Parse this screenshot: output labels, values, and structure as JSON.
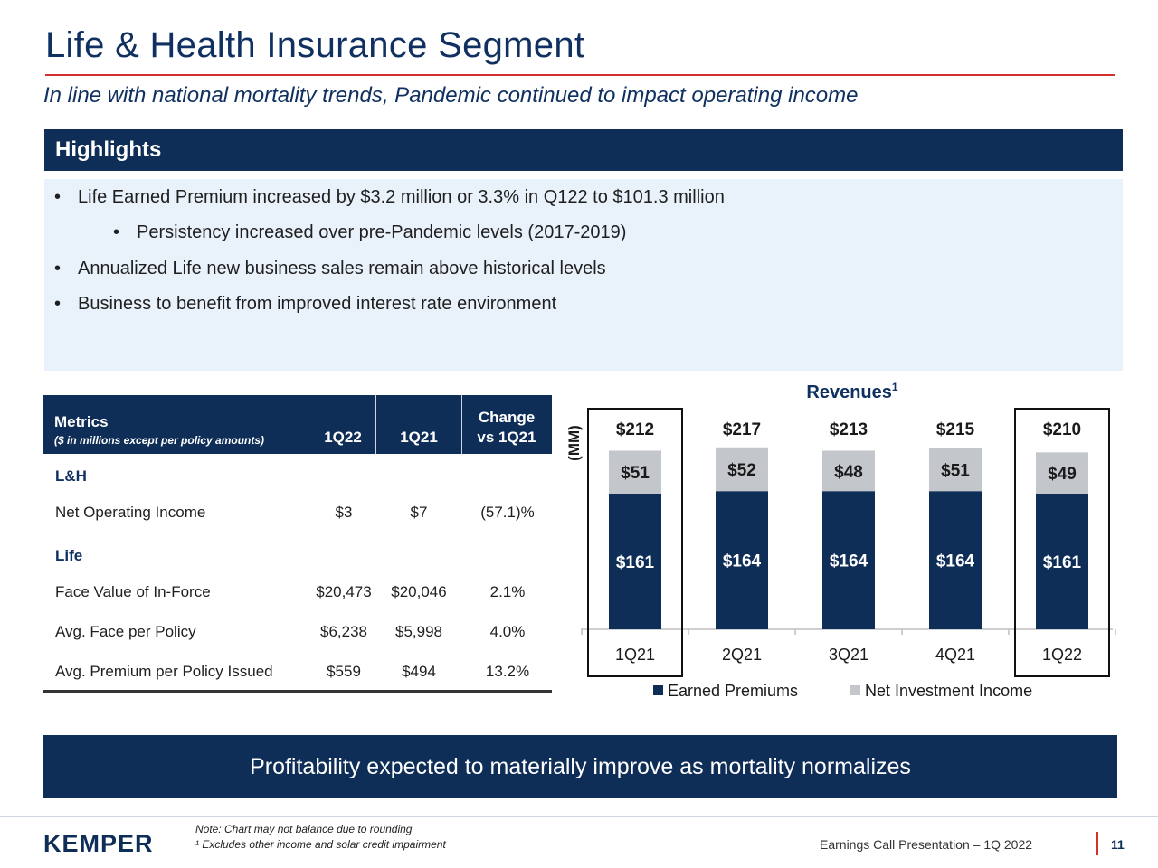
{
  "slide": {
    "title": "Life & Health Insurance Segment",
    "subtitle": "In line with national mortality trends, Pandemic continued to impact operating income"
  },
  "highlights": {
    "header": "Highlights",
    "bullets": [
      "Life Earned Premium increased by $3.2 million or 3.3% in Q122 to $101.3 million",
      "Persistency increased over pre-Pandemic levels (2017-2019)",
      "Annualized Life new business sales remain above historical levels",
      "Business to benefit from improved interest rate environment"
    ]
  },
  "metrics_table": {
    "header": {
      "metrics": "Metrics",
      "sub": "($ in millions except per policy amounts)",
      "col1": "1Q22",
      "col2": "1Q21",
      "col3_line1": "Change",
      "col3_line2": "vs 1Q21"
    },
    "section_lh": "L&H",
    "net_operating_income": {
      "label": "Net Operating Income",
      "v1": "$3",
      "v2": "$7",
      "v3": "(57.1)%"
    },
    "section_life": "Life",
    "face_value": {
      "label": "Face Value of In-Force",
      "v1": "$20,473",
      "v2": "$20,046",
      "v3": "2.1%"
    },
    "avg_face": {
      "label": "Avg. Face per Policy",
      "v1": "$6,238",
      "v2": "$5,998",
      "v3": "4.0%"
    },
    "avg_premium": {
      "label": "Avg. Premium per Policy Issued",
      "v1": "$559",
      "v2": "$494",
      "v3": "13.2%"
    }
  },
  "chart_data": {
    "type": "bar",
    "stacked": true,
    "title": "Revenues",
    "title_superscript": "1",
    "ylabel": "(MM)",
    "categories": [
      "1Q21",
      "2Q21",
      "3Q21",
      "4Q21",
      "1Q22"
    ],
    "series": [
      {
        "name": "Earned Premiums",
        "values": [
          161,
          164,
          164,
          164,
          161
        ],
        "labels": [
          "$161",
          "$164",
          "$164",
          "$164",
          "$161"
        ],
        "color": "#0e2d57"
      },
      {
        "name": "Net Investment Income",
        "values": [
          51,
          52,
          48,
          51,
          49
        ],
        "labels": [
          "$51",
          "$52",
          "$48",
          "$51",
          "$49"
        ],
        "color": "#c3c7cc"
      }
    ],
    "totals": [
      "$212",
      "$217",
      "$213",
      "$215",
      "$210"
    ],
    "highlighted_categories": [
      "1Q21",
      "1Q22"
    ],
    "ylim": [
      0,
      220
    ],
    "grid": false,
    "legend": "bottom"
  },
  "banner": {
    "text": "Profitability expected to materially improve as mortality normalizes"
  },
  "footer": {
    "logo": "KEMPER",
    "note1": "Note: Chart may not balance due to rounding",
    "note2": "¹ Excludes other income and solar credit impairment",
    "presentation": "Earnings Call Presentation – 1Q 2022",
    "page": "11"
  }
}
